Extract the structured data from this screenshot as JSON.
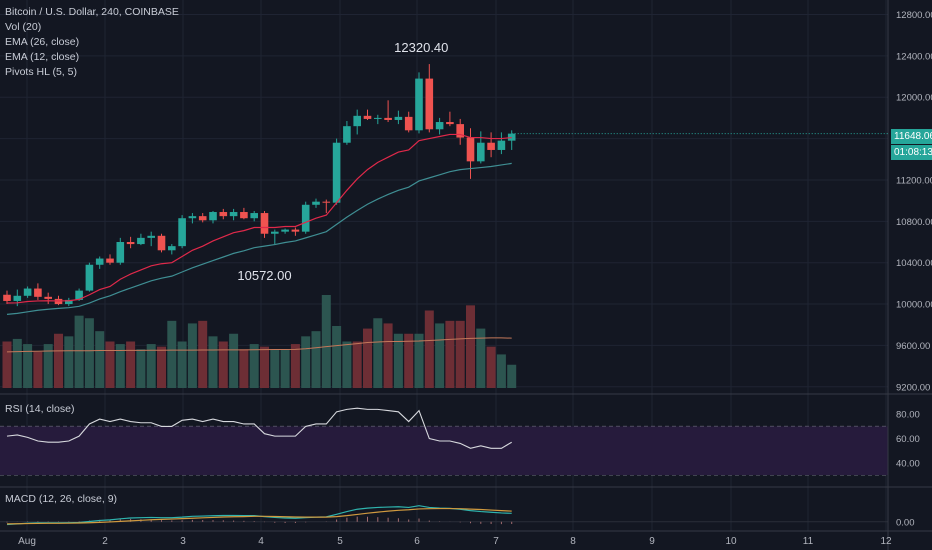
{
  "legend": {
    "symbol": "Bitcoin / U.S. Dollar, 240, COINBASE",
    "vol": "Vol (20)",
    "ema26": "EMA (26, close)",
    "ema12": "EMA (12, close)",
    "pivots": "Pivots HL (5, 5)",
    "rsi": "RSI (14, close)",
    "macd": "MACD (12, 26, close, 9)"
  },
  "price_axis": {
    "ticks": [
      "12800.00",
      "12400.00",
      "12000.00",
      "11600.00",
      "11200.00",
      "10800.00",
      "10400.00",
      "10000.00",
      "9600.00",
      "9200.00"
    ],
    "last_price": "11648.06",
    "countdown": "01:08:13"
  },
  "rsi_axis": {
    "ticks": [
      "80.00",
      "60.00",
      "40.00"
    ]
  },
  "macd_axis": {
    "ticks": [
      "0.00"
    ]
  },
  "time_axis": {
    "ticks": [
      "Aug",
      "2",
      "3",
      "4",
      "5",
      "6",
      "7",
      "8",
      "9",
      "10",
      "11",
      "12"
    ]
  },
  "annotations": {
    "pivot_high": "12320.40",
    "pivot_low": "10572.00"
  },
  "colors": {
    "bg": "#131722",
    "up": "#26a69a",
    "down": "#ef5350",
    "ema12": "#e0294a",
    "ema26": "#3f8e93",
    "rsi_band": "#2a1f43",
    "grid": "#1f2433"
  },
  "chart_data": {
    "type": "candlestick",
    "candles": [
      {
        "o": 10090,
        "h": 10130,
        "l": 10000,
        "c": 10030
      },
      {
        "o": 10030,
        "h": 10140,
        "l": 9980,
        "c": 10080
      },
      {
        "o": 10080,
        "h": 10170,
        "l": 10060,
        "c": 10150
      },
      {
        "o": 10150,
        "h": 10200,
        "l": 10040,
        "c": 10070
      },
      {
        "o": 10070,
        "h": 10110,
        "l": 10000,
        "c": 10050
      },
      {
        "o": 10050,
        "h": 10080,
        "l": 9990,
        "c": 10000
      },
      {
        "o": 10000,
        "h": 10060,
        "l": 9980,
        "c": 10040
      },
      {
        "o": 10040,
        "h": 10150,
        "l": 10030,
        "c": 10130
      },
      {
        "o": 10130,
        "h": 10400,
        "l": 10120,
        "c": 10380
      },
      {
        "o": 10380,
        "h": 10460,
        "l": 10340,
        "c": 10440
      },
      {
        "o": 10440,
        "h": 10480,
        "l": 10380,
        "c": 10400
      },
      {
        "o": 10400,
        "h": 10640,
        "l": 10380,
        "c": 10600
      },
      {
        "o": 10600,
        "h": 10650,
        "l": 10540,
        "c": 10580
      },
      {
        "o": 10580,
        "h": 10680,
        "l": 10570,
        "c": 10640
      },
      {
        "o": 10640,
        "h": 10700,
        "l": 10560,
        "c": 10660
      },
      {
        "o": 10660,
        "h": 10680,
        "l": 10500,
        "c": 10520
      },
      {
        "o": 10520,
        "h": 10580,
        "l": 10480,
        "c": 10560
      },
      {
        "o": 10560,
        "h": 10860,
        "l": 10540,
        "c": 10830
      },
      {
        "o": 10830,
        "h": 10880,
        "l": 10780,
        "c": 10850
      },
      {
        "o": 10850,
        "h": 10880,
        "l": 10790,
        "c": 10810
      },
      {
        "o": 10810,
        "h": 10900,
        "l": 10780,
        "c": 10890
      },
      {
        "o": 10890,
        "h": 10920,
        "l": 10820,
        "c": 10850
      },
      {
        "o": 10850,
        "h": 10920,
        "l": 10810,
        "c": 10890
      },
      {
        "o": 10890,
        "h": 10930,
        "l": 10820,
        "c": 10830
      },
      {
        "o": 10830,
        "h": 10900,
        "l": 10800,
        "c": 10880
      },
      {
        "o": 10880,
        "h": 10900,
        "l": 10640,
        "c": 10680
      },
      {
        "o": 10680,
        "h": 10720,
        "l": 10572,
        "c": 10700
      },
      {
        "o": 10700,
        "h": 10730,
        "l": 10680,
        "c": 10720
      },
      {
        "o": 10720,
        "h": 10740,
        "l": 10660,
        "c": 10700
      },
      {
        "o": 10700,
        "h": 10990,
        "l": 10680,
        "c": 10960
      },
      {
        "o": 10960,
        "h": 11020,
        "l": 10930,
        "c": 10990
      },
      {
        "o": 10990,
        "h": 11010,
        "l": 10880,
        "c": 10980
      },
      {
        "o": 10980,
        "h": 11600,
        "l": 10960,
        "c": 11560
      },
      {
        "o": 11560,
        "h": 11770,
        "l": 11540,
        "c": 11720
      },
      {
        "o": 11720,
        "h": 11880,
        "l": 11640,
        "c": 11820
      },
      {
        "o": 11820,
        "h": 11880,
        "l": 11780,
        "c": 11790
      },
      {
        "o": 11790,
        "h": 11830,
        "l": 11740,
        "c": 11800
      },
      {
        "o": 11800,
        "h": 11970,
        "l": 11760,
        "c": 11780
      },
      {
        "o": 11780,
        "h": 11870,
        "l": 11740,
        "c": 11810
      },
      {
        "o": 11810,
        "h": 11860,
        "l": 11660,
        "c": 11680
      },
      {
        "o": 11680,
        "h": 12240,
        "l": 11650,
        "c": 12180
      },
      {
        "o": 12180,
        "h": 12320.4,
        "l": 11660,
        "c": 11690
      },
      {
        "o": 11690,
        "h": 11800,
        "l": 11640,
        "c": 11760
      },
      {
        "o": 11760,
        "h": 11860,
        "l": 11720,
        "c": 11740
      },
      {
        "o": 11740,
        "h": 11790,
        "l": 11540,
        "c": 11610
      },
      {
        "o": 11610,
        "h": 11700,
        "l": 11210,
        "c": 11380
      },
      {
        "o": 11380,
        "h": 11670,
        "l": 11360,
        "c": 11560
      },
      {
        "o": 11560,
        "h": 11660,
        "l": 11420,
        "c": 11490
      },
      {
        "o": 11490,
        "h": 11660,
        "l": 11450,
        "c": 11580
      },
      {
        "o": 11580,
        "h": 11680,
        "l": 11490,
        "c": 11648.06
      }
    ],
    "ema12": [
      10010,
      10012,
      10025,
      10030,
      10032,
      10030,
      10032,
      10045,
      10090,
      10140,
      10170,
      10240,
      10290,
      10330,
      10370,
      10390,
      10400,
      10460,
      10520,
      10560,
      10610,
      10650,
      10690,
      10710,
      10740,
      10740,
      10740,
      10750,
      10750,
      10790,
      10830,
      10860,
      10980,
      11100,
      11210,
      11300,
      11370,
      11420,
      11470,
      11490,
      11580,
      11600,
      11620,
      11640,
      11640,
      11610,
      11610,
      11600,
      11600,
      11610
    ],
    "ema26": [
      9900,
      9910,
      9925,
      9940,
      9950,
      9958,
      9965,
      9978,
      10010,
      10050,
      10080,
      10120,
      10155,
      10190,
      10225,
      10250,
      10270,
      10310,
      10350,
      10385,
      10420,
      10455,
      10490,
      10515,
      10545,
      10560,
      10575,
      10595,
      10610,
      10640,
      10670,
      10700,
      10770,
      10840,
      10905,
      10965,
      11015,
      11060,
      11100,
      11130,
      11190,
      11220,
      11250,
      11280,
      11300,
      11310,
      11320,
      11330,
      11345,
      11360
    ],
    "volume": [
      900,
      950,
      850,
      700,
      850,
      1050,
      1000,
      1400,
      1350,
      1100,
      900,
      850,
      900,
      750,
      850,
      800,
      1300,
      900,
      1250,
      1300,
      1000,
      900,
      1050,
      750,
      850,
      800,
      750,
      750,
      850,
      1000,
      1100,
      1800,
      1200,
      900,
      900,
      1150,
      1350,
      1250,
      1050,
      1050,
      1050,
      1500,
      1250,
      1300,
      1300,
      1600,
      1150,
      800,
      650,
      450
    ],
    "volume_ma": [
      700,
      705,
      710,
      712,
      715,
      718,
      720,
      720,
      722,
      725,
      726,
      727,
      728,
      729,
      730,
      731,
      732,
      733,
      734,
      735,
      736,
      737,
      738,
      739,
      740,
      742,
      744,
      746,
      748,
      760,
      780,
      800,
      820,
      840,
      860,
      880,
      890,
      900,
      900,
      905,
      910,
      920,
      930,
      940,
      950,
      960,
      965,
      970,
      970,
      965
    ],
    "volume_dir": [
      0,
      1,
      1,
      0,
      1,
      0,
      1,
      1,
      1,
      1,
      0,
      1,
      0,
      1,
      1,
      0,
      1,
      1,
      1,
      0,
      1,
      0,
      1,
      0,
      1,
      0,
      1,
      1,
      0,
      1,
      1,
      1,
      1,
      1,
      0,
      0,
      1,
      0,
      1,
      0,
      1,
      0,
      1,
      0,
      0,
      0,
      1,
      0,
      1,
      1
    ],
    "rsi": [
      62,
      63,
      61,
      58,
      57,
      57,
      58,
      62,
      72,
      76,
      74,
      76,
      74,
      73,
      73,
      70,
      70,
      75,
      76,
      74,
      76,
      74,
      74,
      72,
      72,
      64,
      62,
      62,
      62,
      70,
      72,
      72,
      82,
      84,
      85,
      84,
      84,
      83,
      82,
      74,
      83,
      60,
      58,
      58,
      56,
      52,
      54,
      52,
      52,
      57
    ],
    "macd": [
      -20,
      -15,
      -10,
      -8,
      -8,
      -8,
      -7,
      -5,
      2,
      10,
      14,
      22,
      28,
      30,
      32,
      30,
      30,
      34,
      40,
      42,
      44,
      46,
      46,
      45,
      45,
      38,
      32,
      28,
      26,
      30,
      34,
      36,
      55,
      75,
      92,
      100,
      105,
      108,
      110,
      105,
      118,
      105,
      100,
      98,
      92,
      82,
      75,
      70,
      65,
      62
    ],
    "macd_signal": [
      -15,
      -14,
      -13,
      -12,
      -11,
      -11,
      -10,
      -9,
      -7,
      -4,
      -1,
      3,
      7,
      11,
      15,
      18,
      20,
      23,
      26,
      29,
      32,
      35,
      37,
      38,
      40,
      40,
      39,
      37,
      35,
      34,
      34,
      34,
      38,
      45,
      54,
      63,
      71,
      78,
      84,
      88,
      94,
      96,
      97,
      97,
      96,
      93,
      90,
      86,
      82,
      78
    ],
    "price_ylim": [
      9140,
      12940
    ],
    "rsi_ylim": [
      21,
      95
    ],
    "macd_ylim": [
      -60,
      240
    ]
  }
}
